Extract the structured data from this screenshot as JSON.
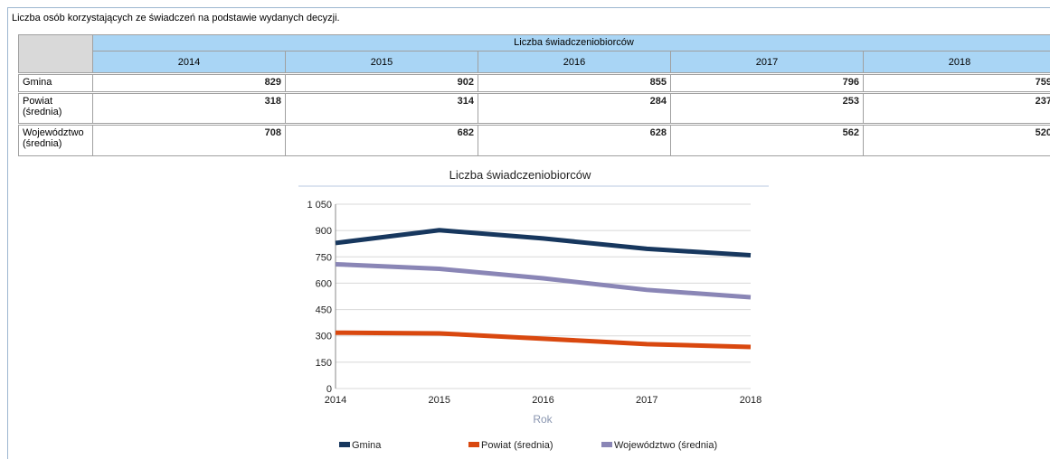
{
  "header": {
    "title": "Liczba osób korzystających ze świadczeń na podstawie wydanych decyzji."
  },
  "chart_data": {
    "type": "line",
    "title": "Liczba świadczeniobiorców",
    "xlabel": "Rok",
    "categories": [
      "2014",
      "2015",
      "2016",
      "2017",
      "2018"
    ],
    "series": [
      {
        "name": "Gmina",
        "color": "#17375e",
        "values": [
          829,
          902,
          855,
          796,
          759
        ]
      },
      {
        "name": "Powiat (średnia)",
        "color": "#d9480f",
        "values": [
          318,
          314,
          284,
          253,
          237
        ]
      },
      {
        "name": "Województwo (średnia)",
        "color": "#8a86b6",
        "values": [
          708,
          682,
          628,
          562,
          520
        ]
      }
    ],
    "ylim": [
      0,
      1050
    ],
    "yticks": [
      0,
      150,
      300,
      450,
      600,
      750,
      900,
      {
        "value": 1050,
        "label": "1 050"
      }
    ],
    "grid": true,
    "legend": "bottom"
  }
}
